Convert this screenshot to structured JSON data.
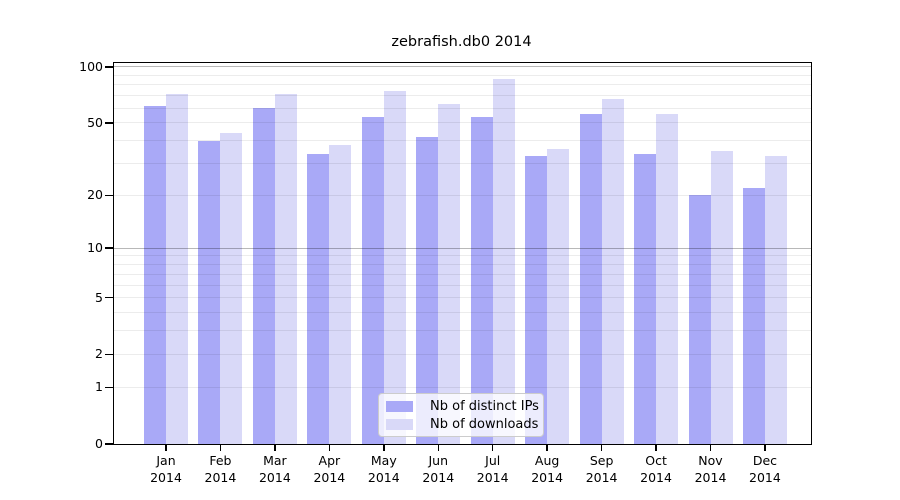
{
  "title": "zebrafish.db0 2014",
  "colors": {
    "ips_bar": "#a9a9f7",
    "downloads_bar": "#d9d9f8",
    "axis": "#000000",
    "gridline": "#ececec",
    "gridline_major": "#b8b8b8",
    "legend_border": "#cccccc",
    "background": "#ffffff"
  },
  "legend": {
    "position": "bottom-center"
  },
  "chart_data": {
    "type": "bar",
    "title": "zebrafish.db0 2014",
    "categories": [
      "Jan",
      "Feb",
      "Mar",
      "Apr",
      "May",
      "Jun",
      "Jul",
      "Aug",
      "Sep",
      "Oct",
      "Nov",
      "Dec"
    ],
    "category_year": "2014",
    "series": [
      {
        "name": "Nb of distinct IPs",
        "color": "#a9a9f7",
        "values": [
          62,
          40,
          60,
          34,
          54,
          42,
          54,
          33,
          56,
          34,
          20,
          22
        ]
      },
      {
        "name": "Nb of downloads",
        "color": "#d9d9f8",
        "values": [
          72,
          44,
          72,
          38,
          74,
          63,
          86,
          36,
          67,
          56,
          35,
          33
        ]
      }
    ],
    "xlabel": "",
    "ylabel": "",
    "y_scale": "log1p",
    "ylim": [
      0,
      105
    ],
    "y_ticks": [
      0,
      1,
      2,
      5,
      10,
      20,
      50,
      100
    ],
    "y_gridlines": [
      1,
      2,
      3,
      4,
      5,
      6,
      7,
      8,
      9,
      10,
      20,
      30,
      40,
      50,
      60,
      70,
      80,
      90,
      100
    ],
    "y_gridlines_major": [
      10,
      100
    ],
    "grid": true,
    "legend_position": "bottom-center"
  }
}
